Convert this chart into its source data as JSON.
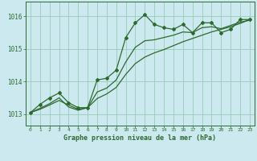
{
  "title": "Graphe pression niveau de la mer (hPa)",
  "xlabel_ticks": [
    0,
    1,
    2,
    3,
    4,
    5,
    6,
    7,
    8,
    9,
    10,
    11,
    12,
    13,
    14,
    15,
    16,
    17,
    18,
    19,
    20,
    21,
    22,
    23
  ],
  "yticks": [
    1013,
    1014,
    1015,
    1016
  ],
  "ylim": [
    1012.65,
    1016.45
  ],
  "xlim": [
    -0.5,
    23.5
  ],
  "bg_color": "#cce9f0",
  "grid_color": "#99ccbb",
  "line_color": "#2d6a2d",
  "series1_x": [
    0,
    1,
    2,
    3,
    4,
    5,
    6,
    7,
    8,
    9,
    10,
    11,
    12,
    13,
    14,
    15,
    16,
    17,
    18,
    19,
    20,
    21,
    22,
    23
  ],
  "series1_y": [
    1013.05,
    1013.3,
    1013.5,
    1013.65,
    1013.35,
    1013.2,
    1013.2,
    1014.05,
    1014.1,
    1014.35,
    1015.35,
    1015.8,
    1016.05,
    1015.75,
    1015.65,
    1015.6,
    1015.75,
    1015.5,
    1015.8,
    1015.8,
    1015.5,
    1015.6,
    1015.9,
    1015.9
  ],
  "series2_x": [
    0,
    1,
    2,
    3,
    4,
    5,
    6,
    7,
    8,
    9,
    10,
    11,
    12,
    13,
    14,
    15,
    16,
    17,
    18,
    19,
    20,
    21,
    22,
    23
  ],
  "series2_y": [
    1013.05,
    1013.15,
    1013.28,
    1013.42,
    1013.28,
    1013.15,
    1013.2,
    1013.48,
    1013.62,
    1013.82,
    1014.22,
    1014.55,
    1014.75,
    1014.88,
    1014.98,
    1015.1,
    1015.22,
    1015.32,
    1015.42,
    1015.52,
    1015.6,
    1015.68,
    1015.78,
    1015.9
  ],
  "series3_x": [
    0,
    1,
    2,
    3,
    4,
    5,
    6,
    7,
    8,
    9,
    10,
    11,
    12,
    13,
    14,
    15,
    16,
    17,
    18,
    19,
    20,
    21,
    22,
    23
  ],
  "series3_y": [
    1013.05,
    1013.18,
    1013.32,
    1013.5,
    1013.22,
    1013.12,
    1013.2,
    1013.68,
    1013.8,
    1014.05,
    1014.6,
    1015.05,
    1015.25,
    1015.28,
    1015.35,
    1015.42,
    1015.52,
    1015.5,
    1015.65,
    1015.68,
    1015.62,
    1015.72,
    1015.82,
    1015.88
  ]
}
